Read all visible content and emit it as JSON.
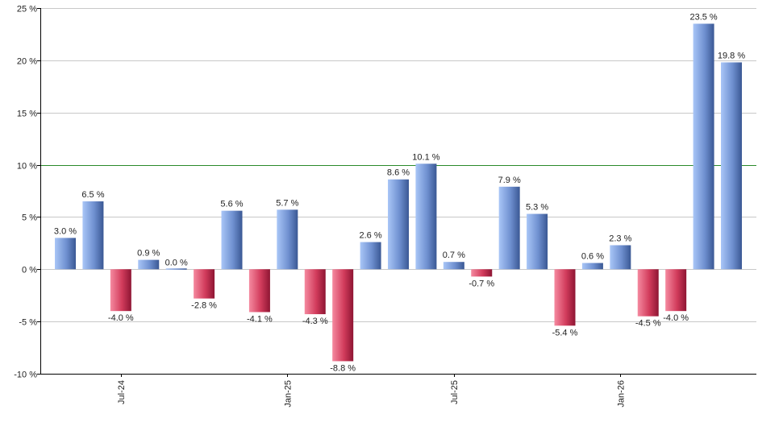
{
  "chart_data": {
    "type": "bar",
    "title": "",
    "xlabel": "",
    "ylabel": "",
    "ylim": [
      -10,
      25
    ],
    "y_ticks": [
      "25 %",
      "20 %",
      "15 %",
      "10 %",
      "5 %",
      "0 %",
      "-5 %",
      "-10 %"
    ],
    "y_tick_values": [
      25,
      20,
      15,
      10,
      5,
      0,
      -5,
      -10
    ],
    "x_tick_labels": [
      "Jul-24",
      "Jan-25",
      "Jul-25",
      "Jan-26"
    ],
    "x_tick_bar_index": [
      2,
      8,
      14,
      20
    ],
    "reference_line": 10,
    "grid": true,
    "colors": {
      "positive_light": "#9ebcf2",
      "positive_dark": "#3d5e9e",
      "negative_light": "#f07a92",
      "negative_dark": "#9c1c3a",
      "reference_line": "#2a8a2a",
      "grid": "#c8c8c8",
      "axis": "#000000"
    },
    "values": [
      3.0,
      6.5,
      -4.0,
      0.9,
      0.0,
      -2.8,
      5.6,
      -4.1,
      5.7,
      -4.3,
      -8.8,
      2.6,
      8.6,
      10.1,
      0.7,
      -0.7,
      7.9,
      5.3,
      -5.4,
      0.6,
      2.3,
      -4.5,
      -4.0,
      23.5,
      19.8
    ],
    "labels": [
      "3.0 %",
      "6.5 %",
      "-4.0 %",
      "0.9 %",
      "0.0 %",
      "-2.8 %",
      "5.6 %",
      "-4.1 %",
      "5.7 %",
      "-4.3 %",
      "-8.8 %",
      "2.6 %",
      "8.6 %",
      "10.1 %",
      "0.7 %",
      "-0.7 %",
      "7.9 %",
      "5.3 %",
      "-5.4 %",
      "0.6 %",
      "2.3 %",
      "-4.5 %",
      "-4.0 %",
      "23.5 %",
      "19.8 %"
    ]
  }
}
